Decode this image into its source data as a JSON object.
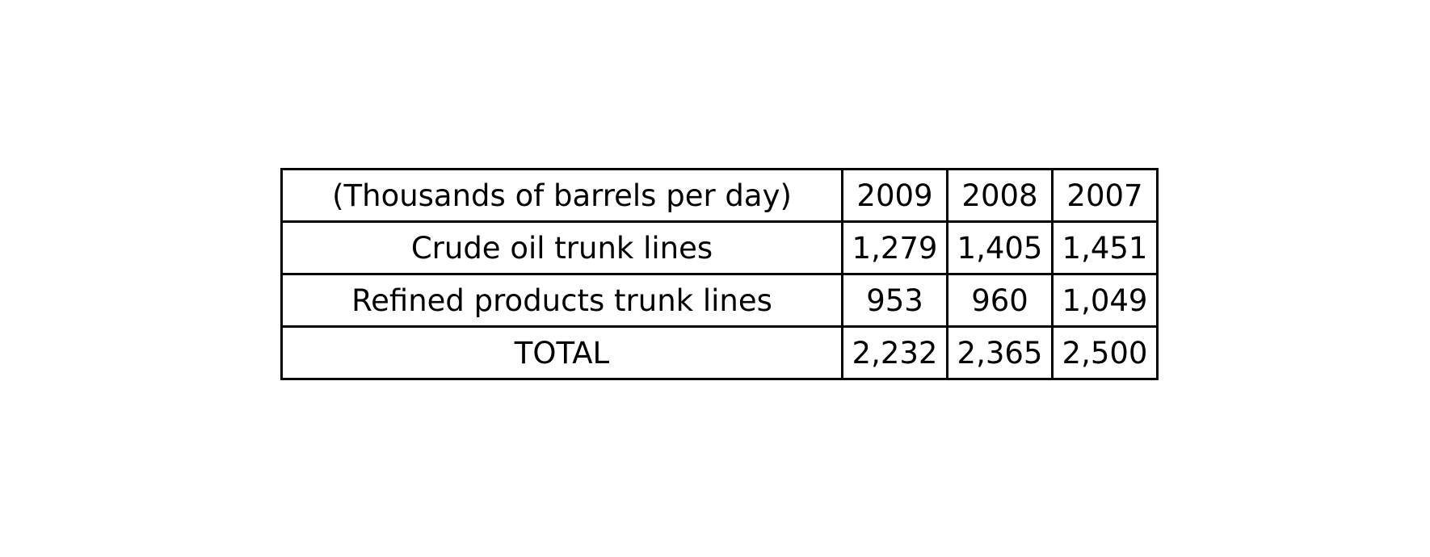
{
  "chart_data": {
    "type": "table",
    "columns": [
      "(Thousands of barrels per day)",
      "2009",
      "2008",
      "2007"
    ],
    "rows": [
      [
        "Crude oil trunk lines",
        "1,279",
        "1,405",
        "1,451"
      ],
      [
        "Refined products trunk lines",
        "953",
        "960",
        "1,049"
      ],
      [
        "TOTAL",
        "2,232",
        "2,365",
        "2,500"
      ]
    ]
  }
}
